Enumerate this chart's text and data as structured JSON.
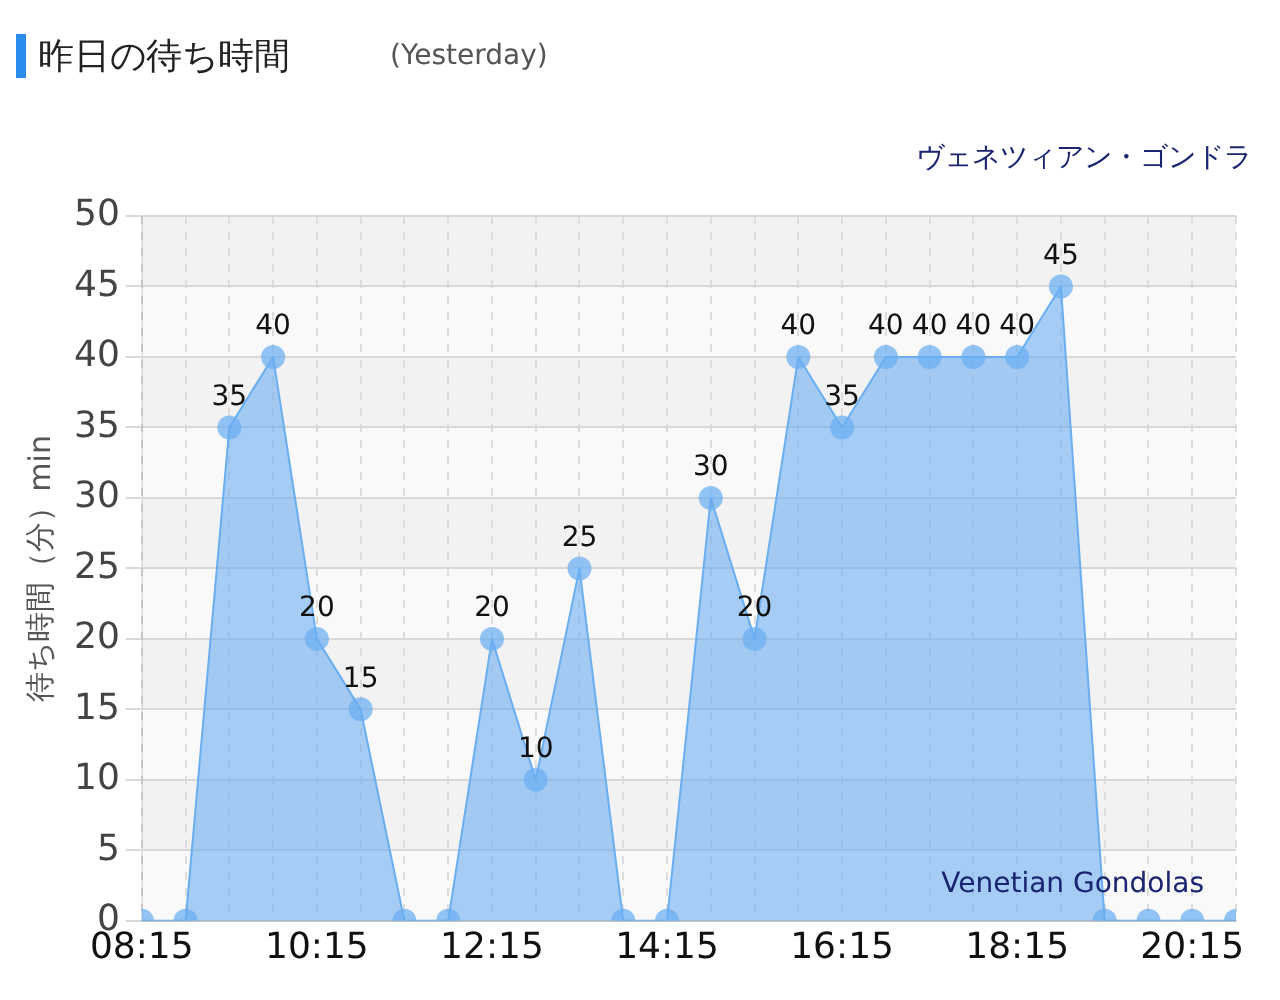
{
  "chart_data": {
    "type": "area",
    "title": "昨日の待ち時間",
    "subtitle": "(Yesterday)",
    "ylabel": "待ち時間（分）min",
    "annotations": [
      "ヴェネツィアン・ゴンドラ",
      "Venetian Gondolas"
    ],
    "x": [
      8.25,
      8.75,
      9.25,
      9.75,
      10.25,
      10.75,
      11.25,
      11.75,
      12.25,
      12.75,
      13.25,
      13.75,
      14.25,
      14.75,
      15.25,
      15.75,
      16.25,
      16.75,
      17.25,
      17.75,
      18.25,
      18.75,
      19.25,
      19.75,
      20.25,
      20.75
    ],
    "series": [
      {
        "color": "#6aaef2",
        "values": [
          0,
          0,
          35,
          40,
          20,
          15,
          0,
          0,
          20,
          10,
          25,
          0,
          0,
          30,
          20,
          40,
          35,
          40,
          40,
          40,
          40,
          45,
          0,
          0,
          0,
          0
        ],
        "value_labels": [
          null,
          null,
          "35",
          "40",
          "20",
          "15",
          null,
          null,
          "20",
          "10",
          "25",
          null,
          null,
          "30",
          "20",
          "40",
          "35",
          "40",
          "40",
          "40",
          "40",
          "45",
          null,
          null,
          null,
          null
        ]
      }
    ],
    "xlim": [
      8.25,
      20.75
    ],
    "xticks": [
      {
        "value": 8.25,
        "label": "08:15"
      },
      {
        "value": 8.75,
        "label": null
      },
      {
        "value": 9.25,
        "label": null
      },
      {
        "value": 9.75,
        "label": null
      },
      {
        "value": 10.25,
        "label": "10:15"
      },
      {
        "value": 10.75,
        "label": null
      },
      {
        "value": 11.25,
        "label": null
      },
      {
        "value": 11.75,
        "label": null
      },
      {
        "value": 12.25,
        "label": "12:15"
      },
      {
        "value": 12.75,
        "label": null
      },
      {
        "value": 13.25,
        "label": null
      },
      {
        "value": 13.75,
        "label": null
      },
      {
        "value": 14.25,
        "label": "14:15"
      },
      {
        "value": 14.75,
        "label": null
      },
      {
        "value": 15.25,
        "label": null
      },
      {
        "value": 15.75,
        "label": null
      },
      {
        "value": 16.25,
        "label": "16:15"
      },
      {
        "value": 16.75,
        "label": null
      },
      {
        "value": 17.25,
        "label": null
      },
      {
        "value": 17.75,
        "label": null
      },
      {
        "value": 18.25,
        "label": "18:15"
      },
      {
        "value": 18.75,
        "label": null
      },
      {
        "value": 19.25,
        "label": null
      },
      {
        "value": 19.75,
        "label": null
      },
      {
        "value": 20.25,
        "label": "20:15"
      },
      {
        "value": 20.75,
        "label": null
      }
    ],
    "ylim": [
      0,
      50
    ],
    "yticks": [
      0,
      5,
      10,
      15,
      20,
      25,
      30,
      35,
      40,
      45,
      50
    ],
    "grid": true,
    "marker": "circle",
    "legend": false
  }
}
